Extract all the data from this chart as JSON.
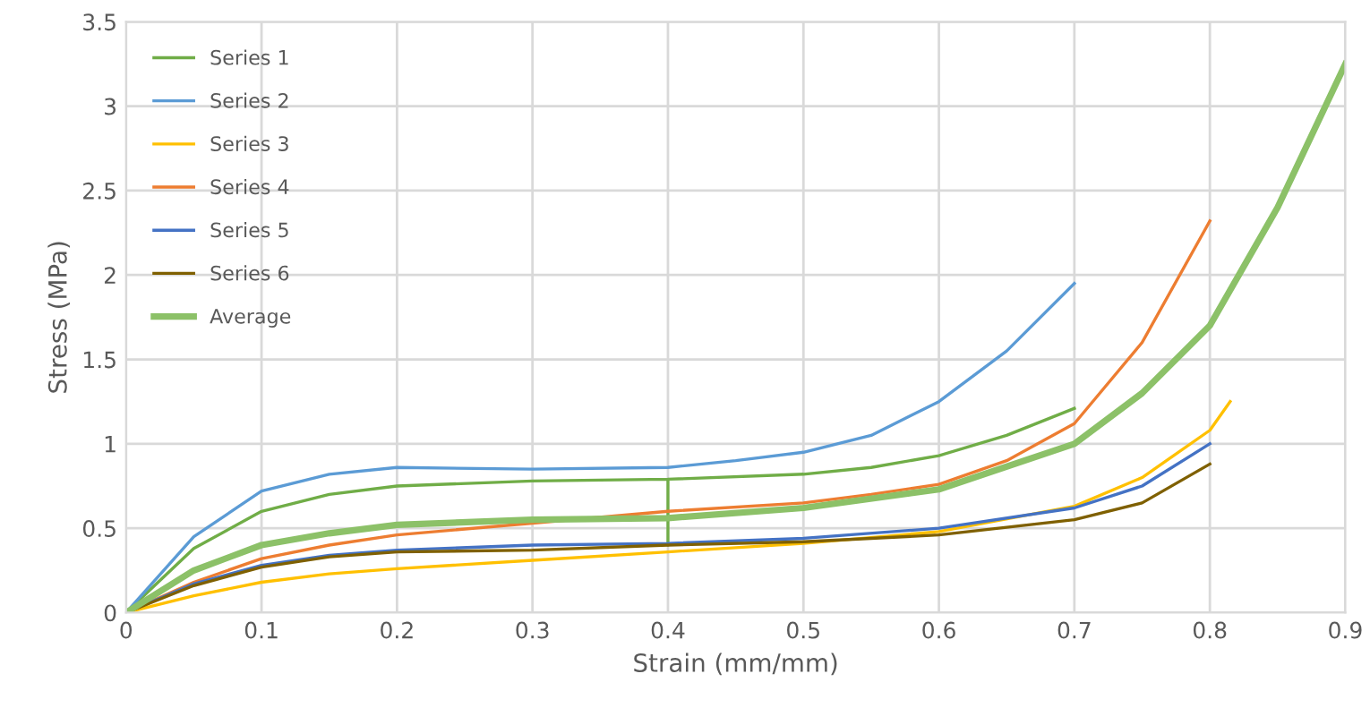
{
  "chart_data": {
    "type": "line",
    "xlabel": "Strain (mm/mm)",
    "ylabel": "Stress (MPa)",
    "xlim": [
      0,
      0.9
    ],
    "ylim": [
      0,
      3.5
    ],
    "xticks": [
      0,
      0.1,
      0.2,
      0.3,
      0.4,
      0.5,
      0.6,
      0.7,
      0.8,
      0.9
    ],
    "yticks": [
      0,
      0.5,
      1,
      1.5,
      2,
      2.5,
      3,
      3.5
    ],
    "grid": true,
    "legend": "top left",
    "marker": "none",
    "line_style": "solid",
    "series": [
      {
        "name": "Series 1",
        "color": "#70ad47",
        "x": [
          0,
          0.05,
          0.1,
          0.15,
          0.2,
          0.3,
          0.4,
          0.4,
          0.4,
          0.5,
          0.55,
          0.6,
          0.65,
          0.7
        ],
        "values": [
          0,
          0.38,
          0.6,
          0.7,
          0.75,
          0.78,
          0.79,
          0.4,
          0.79,
          0.82,
          0.86,
          0.93,
          1.05,
          1.21
        ]
      },
      {
        "name": "Series 2",
        "color": "#5b9bd5",
        "x": [
          0,
          0.05,
          0.1,
          0.15,
          0.2,
          0.3,
          0.4,
          0.45,
          0.5,
          0.55,
          0.6,
          0.65,
          0.7
        ],
        "values": [
          0,
          0.45,
          0.72,
          0.82,
          0.86,
          0.85,
          0.86,
          0.9,
          0.95,
          1.05,
          1.25,
          1.55,
          1.95
        ]
      },
      {
        "name": "Series 3",
        "color": "#ffc000",
        "x": [
          0,
          0.05,
          0.1,
          0.15,
          0.2,
          0.3,
          0.4,
          0.5,
          0.6,
          0.7,
          0.75,
          0.8,
          0.815
        ],
        "values": [
          0,
          0.1,
          0.18,
          0.23,
          0.26,
          0.31,
          0.36,
          0.41,
          0.48,
          0.63,
          0.8,
          1.08,
          1.25
        ]
      },
      {
        "name": "Series 4",
        "color": "#ed7d31",
        "x": [
          0,
          0.05,
          0.1,
          0.15,
          0.2,
          0.3,
          0.4,
          0.5,
          0.55,
          0.6,
          0.65,
          0.7,
          0.75,
          0.8
        ],
        "values": [
          0,
          0.18,
          0.32,
          0.4,
          0.46,
          0.53,
          0.6,
          0.65,
          0.7,
          0.76,
          0.9,
          1.12,
          1.6,
          2.32
        ]
      },
      {
        "name": "Series 5",
        "color": "#4472c4",
        "x": [
          0,
          0.05,
          0.1,
          0.15,
          0.2,
          0.3,
          0.4,
          0.5,
          0.6,
          0.7,
          0.75,
          0.8
        ],
        "values": [
          0,
          0.17,
          0.28,
          0.34,
          0.37,
          0.4,
          0.41,
          0.44,
          0.5,
          0.62,
          0.75,
          1.0
        ]
      },
      {
        "name": "Series 6",
        "color": "#7f6000",
        "x": [
          0,
          0.05,
          0.1,
          0.15,
          0.2,
          0.3,
          0.4,
          0.5,
          0.6,
          0.7,
          0.75,
          0.8
        ],
        "values": [
          0,
          0.16,
          0.27,
          0.33,
          0.36,
          0.37,
          0.4,
          0.42,
          0.46,
          0.55,
          0.65,
          0.88
        ]
      },
      {
        "name": "Average",
        "color": "#8cc168",
        "x": [
          0,
          0.05,
          0.1,
          0.15,
          0.2,
          0.3,
          0.4,
          0.5,
          0.6,
          0.7,
          0.75,
          0.8,
          0.85,
          0.9
        ],
        "values": [
          0,
          0.25,
          0.4,
          0.47,
          0.52,
          0.55,
          0.56,
          0.62,
          0.73,
          1.0,
          1.3,
          1.7,
          2.4,
          3.25
        ]
      }
    ]
  }
}
